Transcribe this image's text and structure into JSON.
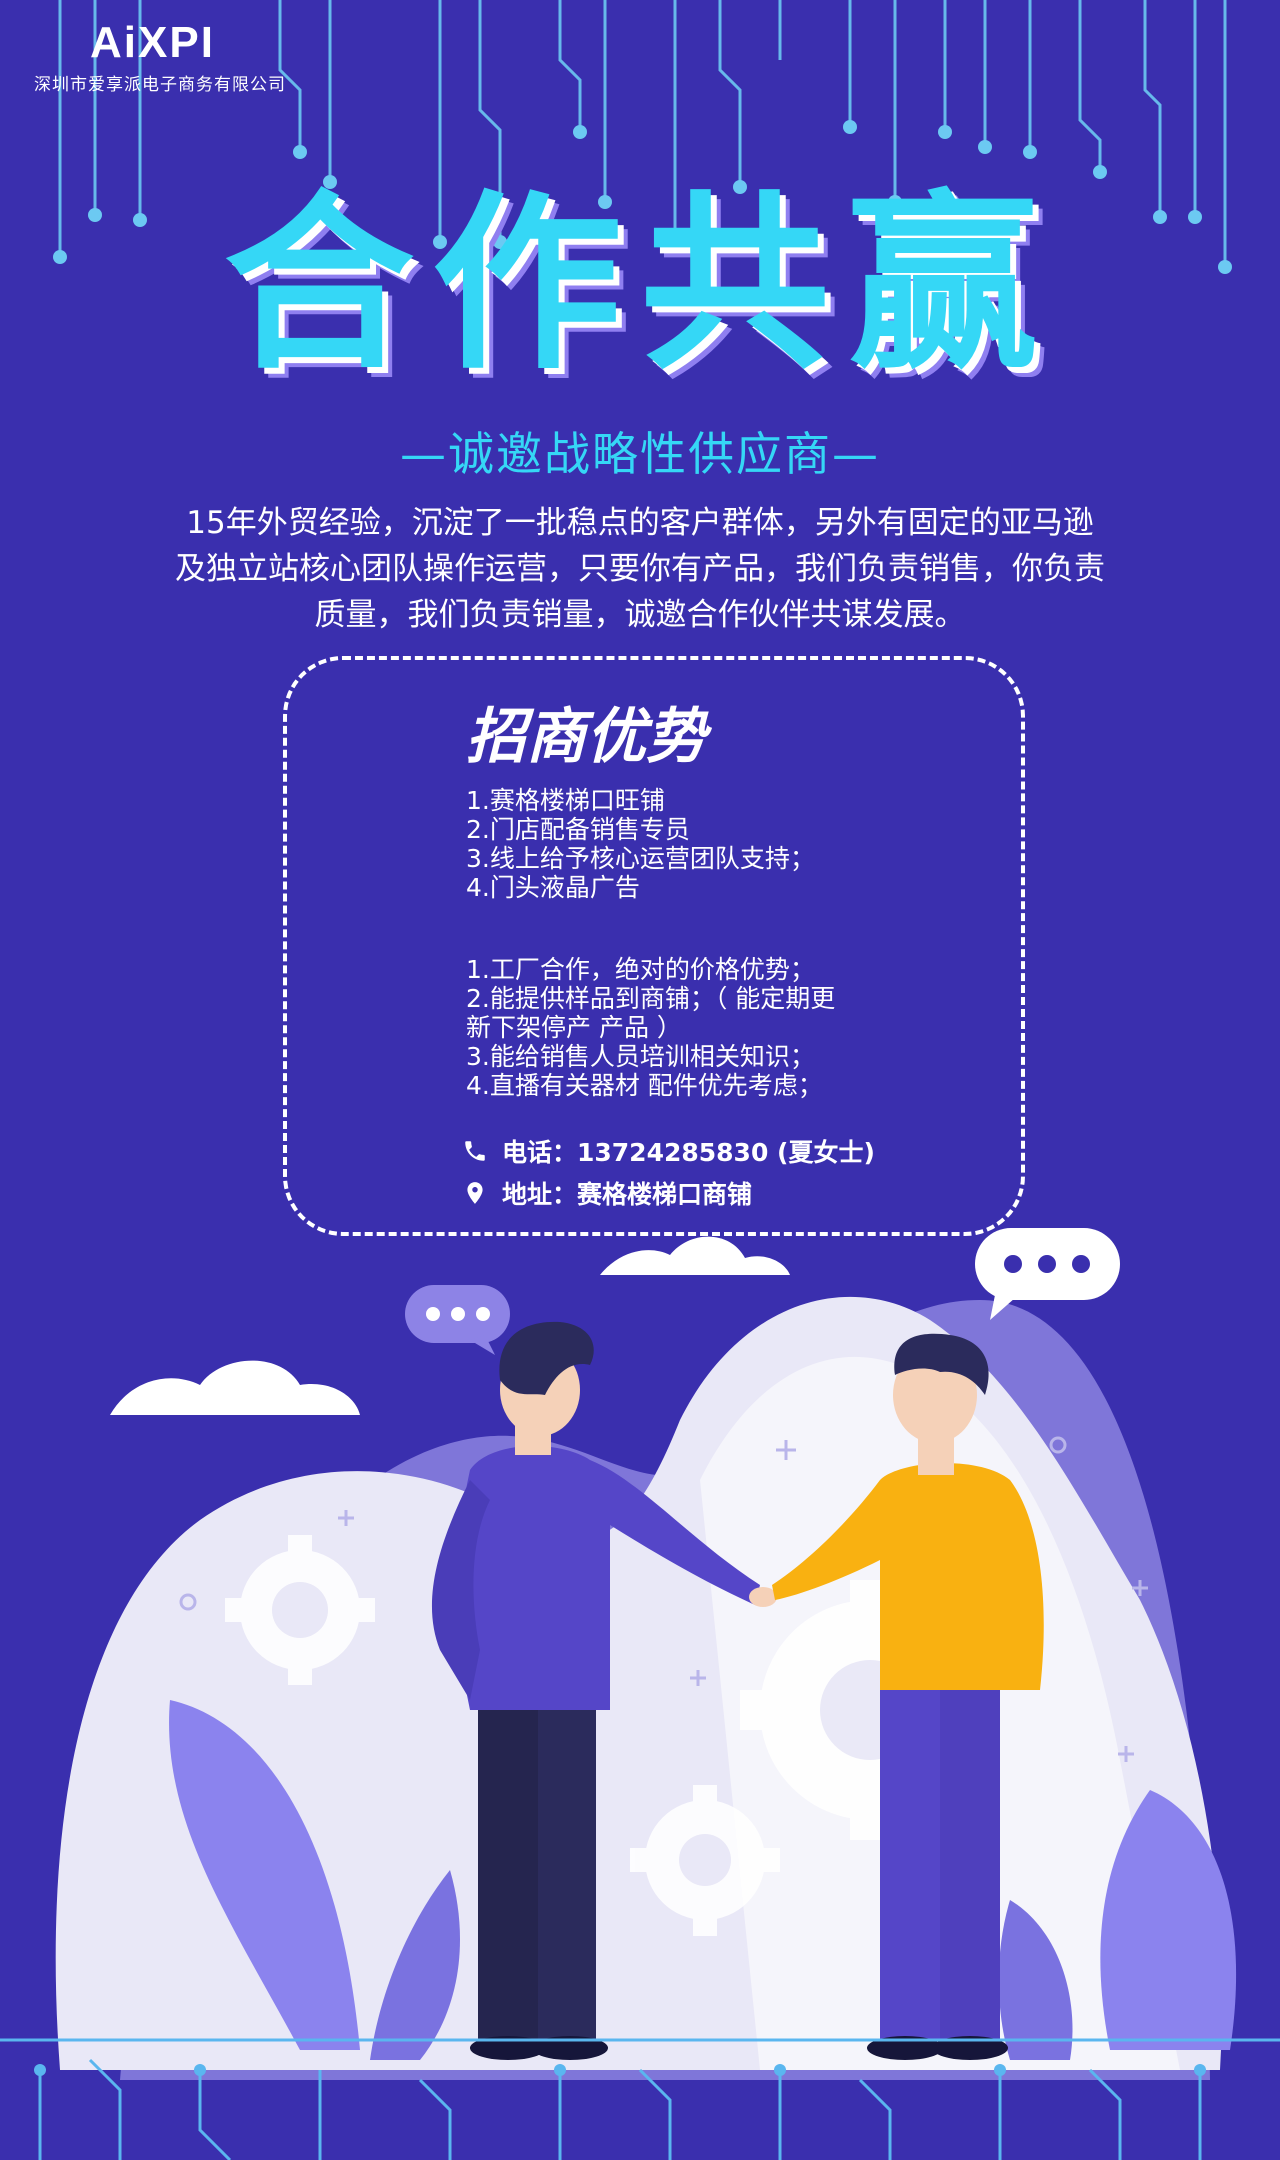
{
  "brand": {
    "logo": "AiXPI",
    "company": "深圳市爱享派电子商务有限公司"
  },
  "title": "合作共赢",
  "subtitle": "—诚邀战略性供应商—",
  "intro": [
    "15年外贸经验，沉淀了一批稳点的客户群体，另外有固定的亚马逊",
    "及独立站核心团队操作运营，只要你有产品，我们负责销售，你负责",
    "质量，我们负责销量，诚邀合作伙伴共谋发展。"
  ],
  "panel": {
    "title": "招商优势",
    "list1": [
      "1.赛格楼梯口旺铺",
      "2.门店配备销售专员",
      "3.线上给予核心运营团队支持；",
      "4.门头液晶广告"
    ],
    "list2": [
      "1.工厂合作，绝对的价格优势；",
      "2.能提供样品到商铺；（ 能定期更",
      "新下架停产 产品 ）",
      "3.能给销售人员培训相关知识；",
      "4.直播有关器材 配件优先考虑；"
    ],
    "phone": "电话：13724285830 (夏女士)",
    "address": "地址：赛格楼梯口商铺"
  },
  "colors": {
    "background": "#3a2fae",
    "accent": "#35d7f6",
    "shirt_left": "#5546c8",
    "shirt_right": "#f9b111"
  },
  "icons": [
    "phone-icon",
    "location-pin-icon",
    "speech-bubble-icon",
    "gear-icon",
    "cloud-icon",
    "leaf-icon"
  ]
}
